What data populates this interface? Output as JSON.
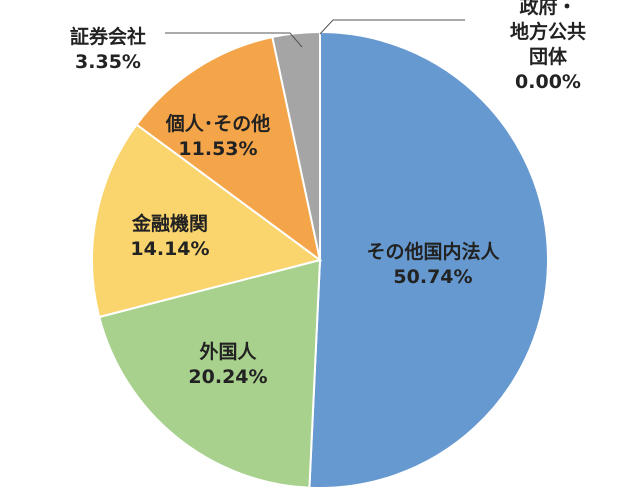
{
  "chart_data": {
    "type": "pie",
    "categories": [
      "その他国内法人",
      "外国人",
      "金融機関",
      "個人･その他",
      "証券会社",
      "政府・\n地方公共団体"
    ],
    "values": [
      50.74,
      20.24,
      14.14,
      11.53,
      3.35,
      0.0
    ],
    "value_labels": [
      "50.74%",
      "20.24%",
      "14.14%",
      "11.53%",
      "3.35%",
      "0.00%"
    ],
    "colors": [
      "#6699d0",
      "#a9d18e",
      "#fad46d",
      "#f4a54a",
      "#a5a5a5",
      "#7f7f7f"
    ]
  }
}
